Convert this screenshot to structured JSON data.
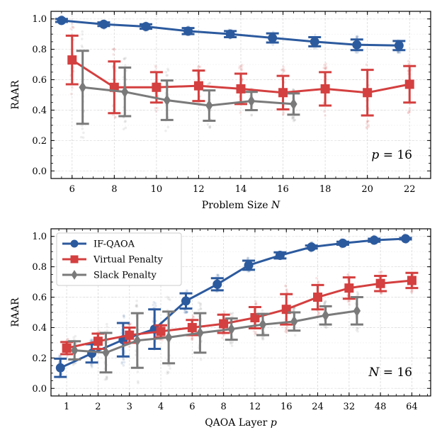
{
  "colors": {
    "if_qaoa": "#2c5a9e",
    "virtual_penalty": "#d43f3f",
    "slack_penalty": "#7a7a7a",
    "grid": "#d9d9d9"
  },
  "chart_data": [
    {
      "type": "line",
      "title": "",
      "xlabel_prefix": "Problem Size ",
      "xlabel_var": "N",
      "ylabel": "RAAR",
      "xlim": [
        5,
        23
      ],
      "ylim": [
        -0.05,
        1.05
      ],
      "xticks": [
        6,
        8,
        10,
        12,
        14,
        16,
        18,
        20,
        22
      ],
      "xtick_labels": [
        "6",
        "8",
        "10",
        "12",
        "14",
        "16",
        "18",
        "20",
        "22"
      ],
      "yticks": [
        0.0,
        0.2,
        0.4,
        0.6,
        0.8,
        1.0
      ],
      "ytick_labels": [
        "0.0",
        "0.2",
        "0.4",
        "0.6",
        "0.8",
        "1.0"
      ],
      "annotation_var": "p",
      "annotation_rest": " = 16",
      "series": [
        {
          "name": "IF-QAOA",
          "marker": "circle",
          "color_key": "if_qaoa",
          "x": [
            5.5,
            7.5,
            9.5,
            11.5,
            13.5,
            15.5,
            17.5,
            19.5,
            21.5
          ],
          "y": [
            0.99,
            0.965,
            0.95,
            0.92,
            0.9,
            0.875,
            0.85,
            0.83,
            0.825
          ],
          "err": [
            0.01,
            0.012,
            0.015,
            0.02,
            0.02,
            0.03,
            0.03,
            0.035,
            0.03
          ]
        },
        {
          "name": "Virtual Penalty",
          "marker": "square",
          "color_key": "virtual_penalty",
          "x": [
            6.0,
            8.0,
            10.0,
            12.0,
            14.0,
            16.0,
            18.0,
            20.0,
            22.0
          ],
          "y": [
            0.73,
            0.55,
            0.55,
            0.56,
            0.54,
            0.515,
            0.54,
            0.515,
            0.57
          ],
          "err": [
            0.16,
            0.17,
            0.1,
            0.1,
            0.1,
            0.11,
            0.11,
            0.15,
            0.12
          ]
        },
        {
          "name": "Slack Penalty",
          "marker": "diamond",
          "color_key": "slack_penalty",
          "x": [
            6.5,
            8.5,
            10.5,
            12.5,
            14.5,
            16.5
          ],
          "y": [
            0.55,
            0.52,
            0.465,
            0.43,
            0.46,
            0.44
          ],
          "err": [
            0.24,
            0.16,
            0.13,
            0.1,
            0.06,
            0.07
          ]
        }
      ]
    },
    {
      "type": "line",
      "title": "",
      "xlabel_prefix": "QAOA Layer ",
      "xlabel_var": "p",
      "ylabel": "RAAR",
      "xlim": [
        0.5,
        12.6
      ],
      "ylim": [
        -0.05,
        1.05
      ],
      "xticks": [
        1,
        2,
        3,
        4,
        5,
        6,
        7,
        8,
        9,
        10,
        11,
        12
      ],
      "xtick_labels": [
        "1",
        "2",
        "3",
        "4",
        "6",
        "8",
        "12",
        "16",
        "24",
        "32",
        "48",
        "64"
      ],
      "yticks": [
        0.0,
        0.2,
        0.4,
        0.6,
        0.8,
        1.0
      ],
      "ytick_labels": [
        "0.0",
        "0.2",
        "0.4",
        "0.6",
        "0.8",
        "1.0"
      ],
      "annotation_var": "N",
      "annotation_rest": " = 16",
      "legend": {
        "location": "upper-left",
        "entries": [
          "IF-QAOA",
          "Virtual Penalty",
          "Slack Penalty"
        ]
      },
      "series": [
        {
          "name": "IF-QAOA",
          "marker": "circle",
          "color_key": "if_qaoa",
          "x": [
            0.8,
            1.8,
            2.8,
            3.8,
            4.8,
            5.8,
            6.8,
            7.8,
            8.8,
            9.8,
            10.8,
            11.8
          ],
          "y": [
            0.135,
            0.23,
            0.32,
            0.39,
            0.575,
            0.685,
            0.81,
            0.875,
            0.93,
            0.955,
            0.975,
            0.985
          ],
          "err": [
            0.06,
            0.06,
            0.11,
            0.13,
            0.05,
            0.04,
            0.03,
            0.02,
            0.01,
            0.01,
            0.01,
            0.005
          ]
        },
        {
          "name": "Virtual Penalty",
          "marker": "square",
          "color_key": "virtual_penalty",
          "x": [
            1.0,
            2.0,
            3.0,
            4.0,
            5.0,
            6.0,
            7.0,
            8.0,
            9.0,
            10.0,
            11.0,
            12.0
          ],
          "y": [
            0.265,
            0.31,
            0.35,
            0.375,
            0.4,
            0.425,
            0.465,
            0.52,
            0.6,
            0.66,
            0.69,
            0.71
          ],
          "err": [
            0.04,
            0.05,
            0.05,
            0.04,
            0.05,
            0.06,
            0.07,
            0.1,
            0.08,
            0.07,
            0.05,
            0.05
          ]
        },
        {
          "name": "Slack Penalty",
          "marker": "diamond",
          "color_key": "slack_penalty",
          "x": [
            1.25,
            2.25,
            3.25,
            4.25,
            5.25,
            6.25,
            7.25,
            8.25,
            9.25,
            10.25
          ],
          "y": [
            0.25,
            0.235,
            0.315,
            0.335,
            0.365,
            0.39,
            0.42,
            0.44,
            0.48,
            0.51
          ],
          "err": [
            0.06,
            0.13,
            0.18,
            0.17,
            0.13,
            0.07,
            0.07,
            0.06,
            0.06,
            0.09
          ]
        }
      ]
    }
  ]
}
